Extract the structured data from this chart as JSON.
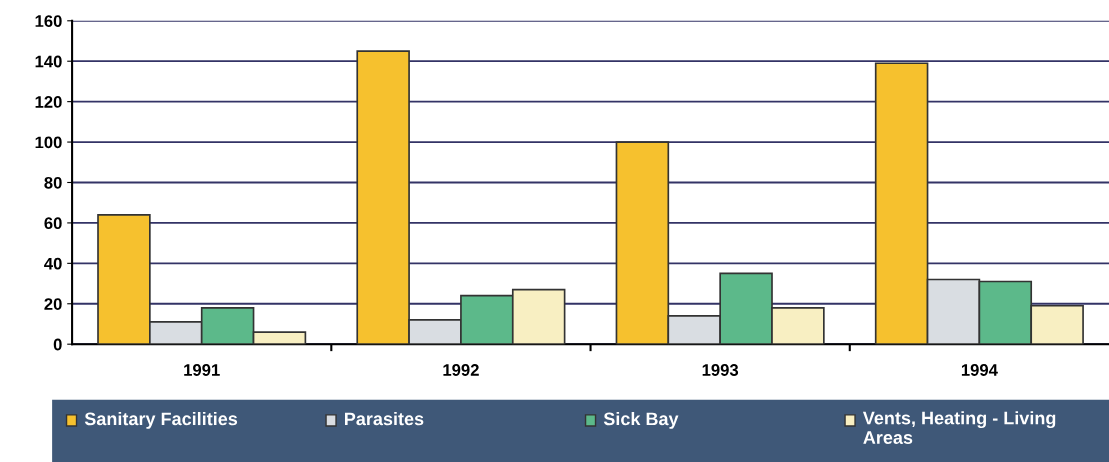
{
  "chart_data": {
    "type": "bar",
    "categories": [
      "1991",
      "1992",
      "1993",
      "1994"
    ],
    "series": [
      {
        "name": "Sanitary Facilities",
        "color": "#f6c12e",
        "values": [
          64,
          145,
          100,
          139
        ]
      },
      {
        "name": "Parasites",
        "color": "#d9dde2",
        "values": [
          11,
          12,
          14,
          32
        ]
      },
      {
        "name": "Sick Bay",
        "color": "#5cb98a",
        "values": [
          18,
          24,
          35,
          31
        ]
      },
      {
        "name": "Vents, Heating - Living Areas",
        "color": "#f8efc2",
        "values": [
          6,
          27,
          18,
          19
        ]
      }
    ],
    "ylim": [
      0,
      160
    ],
    "yticks": [
      0,
      20,
      40,
      60,
      80,
      100,
      120,
      140,
      160
    ],
    "grid": "y",
    "legend": "bottom"
  }
}
